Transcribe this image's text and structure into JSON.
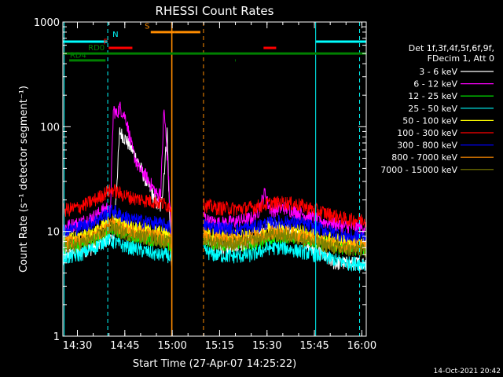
{
  "chart_data": {
    "type": "line",
    "title": "RHESSI Count Rates",
    "xlabel": "Start Time (27-Apr-07 14:25:22)",
    "ylabel": "Count Rate (s⁻¹ detector segment⁻¹)",
    "y_scale": "log",
    "ylim": [
      1,
      1000
    ],
    "xlim_minutes": [
      0,
      96
    ],
    "x_ticks": [
      {
        "t": 4.6,
        "label": "14:30"
      },
      {
        "t": 19.6,
        "label": "14:45"
      },
      {
        "t": 34.6,
        "label": "15:00"
      },
      {
        "t": 49.6,
        "label": "15:15"
      },
      {
        "t": 64.6,
        "label": "15:30"
      },
      {
        "t": 79.6,
        "label": "15:45"
      },
      {
        "t": 94.6,
        "label": "16:00"
      }
    ],
    "y_ticks": [
      {
        "v": 1,
        "label": "1"
      },
      {
        "v": 10,
        "label": "10"
      },
      {
        "v": 100,
        "label": "100"
      },
      {
        "v": 1000,
        "label": "1000"
      }
    ],
    "grid": false,
    "legend_position": "right",
    "legend_header": [
      "Det 1f,3f,4f,5f,6f,9f,",
      "FDecim 1, Att 0"
    ],
    "gap_minutes": [
      34.5,
      44.5
    ],
    "series": [
      {
        "name": "3 - 6 keV",
        "color": "#ffffff",
        "t": [
          0,
          5,
          10,
          14,
          15,
          16,
          18,
          20,
          22,
          24,
          26,
          28,
          30,
          31,
          32,
          33,
          34,
          34.4,
          44.8,
          46,
          50,
          55,
          60,
          64,
          65,
          68,
          72,
          75,
          78,
          82,
          86,
          90,
          96
        ],
        "values": [
          6,
          6.5,
          7,
          8.5,
          9,
          8,
          90,
          75,
          60,
          45,
          32,
          24,
          18,
          17,
          35,
          90,
          8,
          4.5,
          9,
          7.5,
          7,
          7.5,
          8,
          10,
          12,
          11,
          10,
          9,
          7,
          6,
          5,
          5,
          5
        ]
      },
      {
        "name": "6 - 12 keV",
        "color": "#ff00ff",
        "t": [
          0,
          5,
          10,
          14,
          15,
          16,
          17,
          18,
          20,
          22,
          24,
          26,
          28,
          30,
          31,
          32,
          33,
          34,
          34.4,
          44.8,
          46,
          50,
          55,
          60,
          62,
          64,
          65,
          66,
          70,
          75,
          78,
          82,
          86,
          90,
          96
        ],
        "values": [
          11,
          12,
          14,
          17,
          15,
          150,
          130,
          155,
          120,
          60,
          40,
          35,
          28,
          22,
          25,
          150,
          55,
          15,
          9,
          14,
          12.5,
          12,
          12.5,
          13.5,
          16,
          24,
          18,
          16,
          17,
          15,
          14,
          12.5,
          12,
          11,
          11
        ]
      },
      {
        "name": "12 - 25 keV",
        "color": "#00ff00",
        "t": [
          0,
          5,
          10,
          14,
          16,
          18,
          22,
          26,
          30,
          33,
          34.4,
          44.8,
          48,
          55,
          60,
          65,
          70,
          75,
          80,
          85,
          90,
          96
        ],
        "values": [
          7,
          7.5,
          8.5,
          10,
          11,
          10,
          9,
          9,
          8,
          8,
          7,
          8.5,
          7.8,
          7.5,
          7.5,
          8.5,
          9,
          9,
          8,
          7.5,
          7,
          7
        ]
      },
      {
        "name": "25 - 50 keV",
        "color": "#00ffff",
        "t": [
          0,
          5,
          10,
          14,
          16,
          18,
          22,
          26,
          30,
          33,
          34.4,
          44.8,
          48,
          55,
          60,
          65,
          70,
          75,
          80,
          85,
          90,
          96
        ],
        "values": [
          5.5,
          6,
          7,
          8.5,
          8,
          7.5,
          7,
          6.5,
          6,
          6,
          5.5,
          6.5,
          6,
          5.8,
          6,
          7,
          7,
          6.5,
          6,
          5.5,
          5,
          5
        ]
      },
      {
        "name": "50 - 100 keV",
        "color": "#ffff00",
        "t": [
          0,
          5,
          10,
          14,
          16,
          18,
          22,
          26,
          30,
          33,
          34.4,
          44.8,
          48,
          55,
          60,
          65,
          70,
          75,
          80,
          85,
          90,
          96
        ],
        "values": [
          8.5,
          9,
          10,
          12,
          13,
          12,
          11,
          10.5,
          10,
          9.5,
          9,
          10,
          9.2,
          9,
          9.5,
          10.5,
          10.5,
          10,
          9,
          8.5,
          8,
          8
        ]
      },
      {
        "name": "100 - 300 keV",
        "color": "#ff0000",
        "t": [
          0,
          5,
          10,
          14,
          16,
          18,
          22,
          26,
          30,
          33,
          34.4,
          44.8,
          48,
          55,
          60,
          65,
          70,
          75,
          80,
          85,
          90,
          96
        ],
        "values": [
          16,
          17,
          20,
          24,
          25,
          23,
          21,
          20,
          19,
          18,
          17,
          18,
          17,
          16.5,
          17,
          18.5,
          19,
          18,
          16,
          14.5,
          13,
          13
        ]
      },
      {
        "name": "300 - 800 keV",
        "color": "#0000ff",
        "t": [
          0,
          5,
          10,
          14,
          16,
          18,
          22,
          26,
          30,
          33,
          34.4,
          44.8,
          48,
          55,
          60,
          65,
          70,
          75,
          80,
          85,
          90,
          96
        ],
        "values": [
          10,
          11,
          12.5,
          15,
          16,
          14.5,
          13,
          12.5,
          12,
          11.5,
          11,
          11.5,
          11,
          10.5,
          11,
          12,
          12.5,
          12,
          11,
          10,
          9,
          9
        ]
      },
      {
        "name": "800 - 7000 keV",
        "color": "#ff8c00",
        "t": [
          0,
          5,
          10,
          14,
          16,
          18,
          22,
          26,
          30,
          33,
          34.4,
          44.8,
          48,
          55,
          60,
          65,
          70,
          75,
          80,
          85,
          90,
          96
        ],
        "values": [
          7.8,
          8.2,
          9.2,
          11,
          12,
          11,
          10,
          9.5,
          9,
          8.5,
          8,
          9,
          8.5,
          8.2,
          8.7,
          9.8,
          9.8,
          9.2,
          8.3,
          7.7,
          7.2,
          7.2
        ]
      },
      {
        "name": "7000 - 15000 keV",
        "color": "#808000",
        "t": [
          0,
          5,
          10,
          14,
          16,
          18,
          22,
          26,
          30,
          33,
          34.4,
          44.8,
          48,
          55,
          60,
          65,
          70,
          75,
          80,
          85,
          90,
          96
        ],
        "values": [
          7.2,
          7.6,
          8.6,
          10.2,
          11,
          10,
          9.3,
          8.8,
          8.4,
          8,
          7.5,
          8.4,
          7.9,
          7.6,
          8.1,
          9.2,
          9.2,
          8.6,
          7.8,
          7.2,
          6.7,
          6.7
        ]
      }
    ],
    "annotations": [
      {
        "kind": "vline",
        "t": 0.4,
        "color": "#00ffff",
        "style": "solid"
      },
      {
        "kind": "vline",
        "t": 14.2,
        "color": "#00ffff",
        "style": "dashed"
      },
      {
        "kind": "vline",
        "t": 34.4,
        "color": "#ff8c00",
        "style": "solid"
      },
      {
        "kind": "vline",
        "t": 34.55,
        "color": "#ff8c00",
        "style": "solid"
      },
      {
        "kind": "vline",
        "t": 44.5,
        "color": "#ff8c00",
        "style": "dashed"
      },
      {
        "kind": "vline",
        "t": 80.0,
        "color": "#00ffff",
        "style": "solid"
      },
      {
        "kind": "vline",
        "t": 93.9,
        "color": "#00ffff",
        "style": "dashed"
      },
      {
        "kind": "bar",
        "t0": 0,
        "t1": 14.1,
        "level": 650,
        "color": "#00ffff"
      },
      {
        "kind": "bar",
        "t0": 80.1,
        "t1": 96,
        "level": 650,
        "color": "#00ffff"
      },
      {
        "kind": "bar",
        "t0": 14.5,
        "t1": 22,
        "level": 565,
        "color": "#ff0000"
      },
      {
        "kind": "bar",
        "t0": 63.5,
        "t1": 67.5,
        "level": 565,
        "color": "#ff0000"
      },
      {
        "kind": "bar",
        "t0": 27.8,
        "t1": 35.4,
        "level": 800,
        "color": "#ff8c00"
      },
      {
        "kind": "bar",
        "t0": 35.4,
        "t1": 43.5,
        "level": 800,
        "color": "#ff8c00"
      },
      {
        "kind": "bar",
        "t0": 0,
        "t1": 96,
        "level": 500,
        "color": "#008000"
      },
      {
        "kind": "bar",
        "t0": 2,
        "t1": 13.5,
        "level": 430,
        "color": "#008000"
      },
      {
        "kind": "bar",
        "t0": 54.5,
        "t1": 54.7,
        "level": 430,
        "color": "#008000"
      }
    ],
    "annotation_labels": [
      {
        "text": "N",
        "t": 15.7,
        "level": 720,
        "color": "#00ffff"
      },
      {
        "text": "F",
        "t": 12.8,
        "level": 610,
        "color": "#ff0000"
      },
      {
        "text": "S",
        "t": 25.9,
        "level": 860,
        "color": "#ff8c00"
      },
      {
        "text": "RD0",
        "t": 8.0,
        "level": 535,
        "color": "#008000"
      },
      {
        "text": "RD4",
        "t": 2.2,
        "level": 455,
        "color": "#008000"
      }
    ],
    "footer": "14-Oct-2021 20:42"
  }
}
